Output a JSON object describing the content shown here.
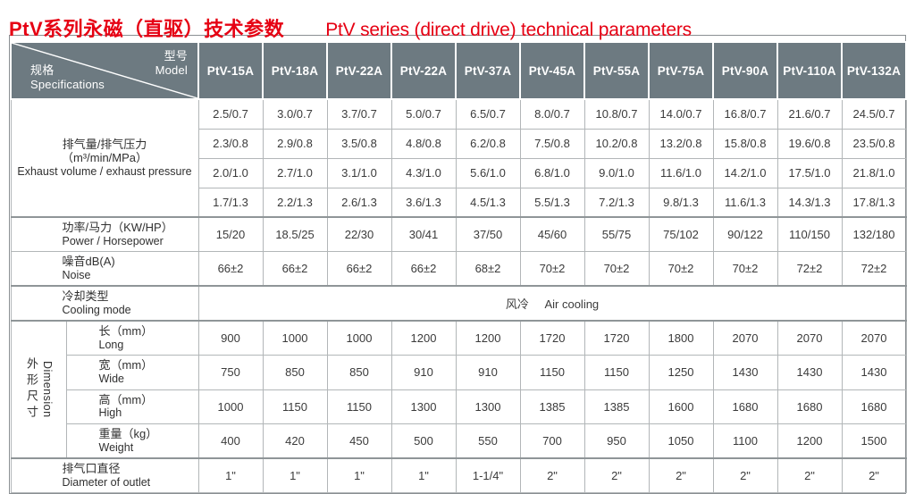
{
  "title": {
    "zh": "PtV系列永磁（直驱）技术参数",
    "en": "PtV series (direct drive) technical parameters"
  },
  "colors": {
    "title_red": "#e60013",
    "header_bg": "#6d7a81",
    "grid_line": "#b2b6b8",
    "section_line": "#8f9598"
  },
  "table": {
    "corner": {
      "model_zh": "型号",
      "model_en": "Model",
      "spec_zh": "规格",
      "spec_en": "Specifications"
    },
    "models": [
      "PtV-15A",
      "PtV-18A",
      "PtV-22A",
      "PtV-22A",
      "PtV-37A",
      "PtV-45A",
      "PtV-55A",
      "PtV-75A",
      "PtV-90A",
      "PtV-110A",
      "PtV-132A"
    ],
    "exhaust": {
      "label_zh": "排气量/排气压力",
      "label_unit": "（m³/min/MPa）",
      "label_en": "Exhaust volume / exhaust pressure",
      "rows": [
        [
          "2.5/0.7",
          "3.0/0.7",
          "3.7/0.7",
          "5.0/0.7",
          "6.5/0.7",
          "8.0/0.7",
          "10.8/0.7",
          "14.0/0.7",
          "16.8/0.7",
          "21.6/0.7",
          "24.5/0.7"
        ],
        [
          "2.3/0.8",
          "2.9/0.8",
          "3.5/0.8",
          "4.8/0.8",
          "6.2/0.8",
          "7.5/0.8",
          "10.2/0.8",
          "13.2/0.8",
          "15.8/0.8",
          "19.6/0.8",
          "23.5/0.8"
        ],
        [
          "2.0/1.0",
          "2.7/1.0",
          "3.1/1.0",
          "4.3/1.0",
          "5.6/1.0",
          "6.8/1.0",
          "9.0/1.0",
          "11.6/1.0",
          "14.2/1.0",
          "17.5/1.0",
          "21.8/1.0"
        ],
        [
          "1.7/1.3",
          "2.2/1.3",
          "2.6/1.3",
          "3.6/1.3",
          "4.5/1.3",
          "5.5/1.3",
          "7.2/1.3",
          "9.8/1.3",
          "11.6/1.3",
          "14.3/1.3",
          "17.8/1.3"
        ]
      ]
    },
    "power": {
      "label_zh": "功率/马力（KW/HP）",
      "label_en": "Power / Horsepower",
      "values": [
        "15/20",
        "18.5/25",
        "22/30",
        "30/41",
        "37/50",
        "45/60",
        "55/75",
        "75/102",
        "90/122",
        "110/150",
        "132/180"
      ]
    },
    "noise": {
      "label_zh": "噪音dB(A)",
      "label_en": "Noise",
      "values": [
        "66±2",
        "66±2",
        "66±2",
        "66±2",
        "68±2",
        "70±2",
        "70±2",
        "70±2",
        "70±2",
        "72±2",
        "72±2"
      ]
    },
    "cooling": {
      "label_zh": "冷却类型",
      "label_en": "Cooling mode",
      "value_zh": "风冷",
      "value_en": "Air cooling"
    },
    "dimension": {
      "side_zh": "外形尺寸",
      "side_en": "Dimension",
      "rows": [
        {
          "label_zh": "长（mm）",
          "label_en": "Long",
          "values": [
            "900",
            "1000",
            "1000",
            "1200",
            "1200",
            "1720",
            "1720",
            "1800",
            "2070",
            "2070",
            "2070"
          ]
        },
        {
          "label_zh": "宽（mm）",
          "label_en": "Wide",
          "values": [
            "750",
            "850",
            "850",
            "910",
            "910",
            "1150",
            "1150",
            "1250",
            "1430",
            "1430",
            "1430"
          ]
        },
        {
          "label_zh": "高（mm）",
          "label_en": "High",
          "values": [
            "1000",
            "1150",
            "1150",
            "1300",
            "1300",
            "1385",
            "1385",
            "1600",
            "1680",
            "1680",
            "1680"
          ]
        },
        {
          "label_zh": "重量（kg）",
          "label_en": "Weight",
          "values": [
            "400",
            "420",
            "450",
            "500",
            "550",
            "700",
            "950",
            "1050",
            "1100",
            "1200",
            "1500"
          ]
        }
      ]
    },
    "outlet": {
      "label_zh": "排气口直径",
      "label_en": "Diameter of outlet",
      "values": [
        "1\"",
        "1\"",
        "1\"",
        "1\"",
        "1-1/4\"",
        "2\"",
        "2\"",
        "2\"",
        "2\"",
        "2\"",
        "2\""
      ]
    }
  }
}
